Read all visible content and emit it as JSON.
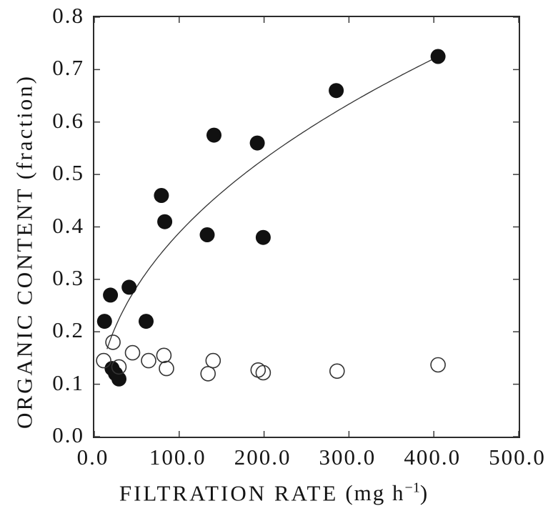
{
  "figure": {
    "background": "#ffffff",
    "ink_color": "#1b1b1b",
    "marker_fill_color": "#111111",
    "marker_open_stroke_color": "#333333",
    "curve_color": "#1c1c1c",
    "axis_color": "#2b2b2b"
  },
  "chart_data": {
    "type": "scatter",
    "title": "",
    "xlabel": "FILTRATION RATE (mg h⁻¹)",
    "xlabel_parts": {
      "main": "FILTRATION RATE",
      "unit_prefix": "(mg h",
      "unit_sup": "−1",
      "unit_suffix": ")"
    },
    "ylabel": "ORGANIC CONTENT (fraction)",
    "xlim": [
      0,
      500
    ],
    "ylim": [
      0,
      0.8
    ],
    "x_ticks": [
      0,
      100,
      200,
      300,
      400,
      500
    ],
    "x_tick_labels": [
      "0.0",
      "100.0",
      "200.0",
      "300.0",
      "400.0",
      "500.0"
    ],
    "y_ticks": [
      0,
      0.1,
      0.2,
      0.3,
      0.4,
      0.5,
      0.6,
      0.7,
      0.8
    ],
    "y_tick_labels": [
      "0.0",
      "0.1",
      "0.2",
      "0.3",
      "0.4",
      "0.5",
      "0.6",
      "0.7",
      "0.8"
    ],
    "grid": false,
    "legend": false,
    "series": [
      {
        "name": "filled_circles",
        "marker": "filled-circle",
        "points": [
          [
            12,
            0.22
          ],
          [
            19,
            0.27
          ],
          [
            41,
            0.285
          ],
          [
            61,
            0.22
          ],
          [
            79,
            0.46
          ],
          [
            83,
            0.41
          ],
          [
            133,
            0.385
          ],
          [
            141,
            0.575
          ],
          [
            192,
            0.56
          ],
          [
            199,
            0.38
          ],
          [
            285,
            0.66
          ],
          [
            405,
            0.725
          ],
          [
            21,
            0.13
          ],
          [
            25,
            0.12
          ],
          [
            29,
            0.11
          ]
        ]
      },
      {
        "name": "open_circles",
        "marker": "open-circle",
        "points": [
          [
            22,
            0.18
          ],
          [
            45,
            0.16
          ],
          [
            11,
            0.145
          ],
          [
            29,
            0.133
          ],
          [
            64,
            0.145
          ],
          [
            82,
            0.155
          ],
          [
            85,
            0.13
          ],
          [
            140,
            0.145
          ],
          [
            134,
            0.12
          ],
          [
            193,
            0.127
          ],
          [
            199,
            0.122
          ],
          [
            286,
            0.125
          ],
          [
            405,
            0.137
          ]
        ]
      }
    ],
    "fit_curve": {
      "applies_to": "filled_circles",
      "type": "power",
      "equation": "y = 0.0501 * x^0.445",
      "a": 0.0501,
      "b": 0.445,
      "x_start": 15,
      "x_end": 406
    }
  }
}
